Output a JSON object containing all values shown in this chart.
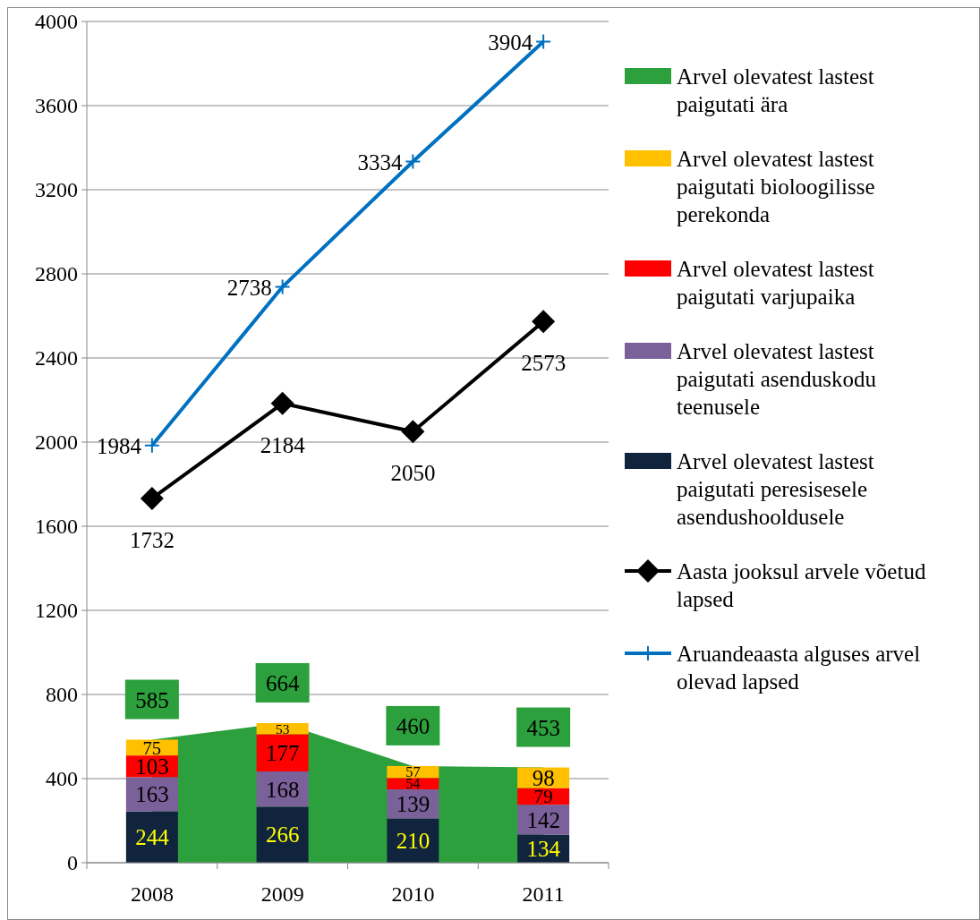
{
  "chart_data": {
    "type": "bar",
    "stacked": true,
    "categories": [
      "2008",
      "2009",
      "2010",
      "2011"
    ],
    "ylim": [
      0,
      4000
    ],
    "yticks": [
      0,
      400,
      800,
      1200,
      1600,
      2000,
      2400,
      2800,
      3200,
      3600,
      4000
    ],
    "grid": "y",
    "legend": "right",
    "data_labels": true,
    "series": [
      {
        "name": "Arvel olevatest lastest paigutati ära",
        "type": "area",
        "color": "#2ca03c",
        "values": [
          585,
          664,
          460,
          453
        ]
      },
      {
        "name": "Arvel olevatest lastest paigutati peresisesele asendushooldusele",
        "color": "#10243e",
        "values": [
          244,
          266,
          210,
          134
        ]
      },
      {
        "name": "Arvel olevatest lastest paigutati asenduskodu teenusele",
        "color": "#7a619a",
        "values": [
          163,
          168,
          139,
          142
        ]
      },
      {
        "name": "Arvel olevatest lastest paigutati varjupaika",
        "color": "#ff0000",
        "values": [
          103,
          177,
          54,
          79
        ]
      },
      {
        "name": "Arvel olevatest lastest paigutati bioloogilisse perekonda",
        "color": "#ffc000",
        "values": [
          75,
          53,
          57,
          98
        ]
      },
      {
        "name": "Aasta jooksul arvele võetud lapsed",
        "type": "line",
        "marker": "diamond",
        "color": "#000000",
        "values": [
          1732,
          2184,
          2050,
          2573
        ]
      },
      {
        "name": "Aruandeaasta alguses arvel olevad lapsed",
        "type": "line",
        "marker": "cross",
        "color": "#0070c0",
        "values": [
          1984,
          2738,
          3334,
          3904
        ]
      }
    ]
  }
}
